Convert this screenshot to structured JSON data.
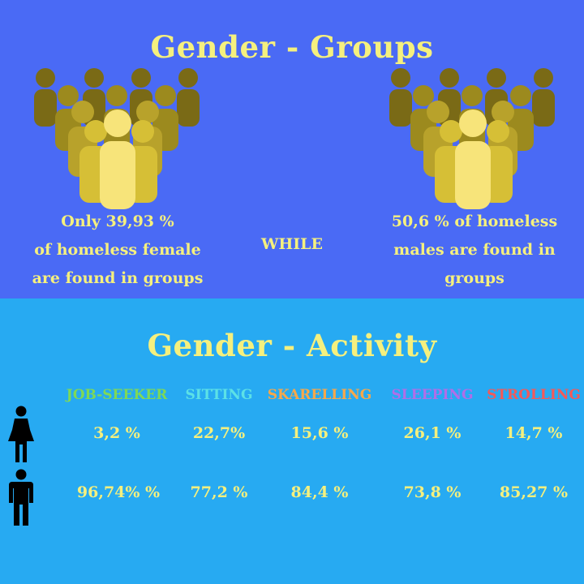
{
  "groups": {
    "title": "Gender - Groups",
    "female_text": [
      "Only 39,93 %",
      "of homeless female",
      "are found in groups"
    ],
    "connector": "WHILE",
    "male_text": [
      "50,6 % of homeless",
      "males are found in",
      "groups"
    ]
  },
  "activity": {
    "title": "Gender - Activity",
    "columns": [
      {
        "label": "JOB-SEEKER",
        "color": "#7ed957",
        "female": "3,2 %",
        "male": "96,74% %"
      },
      {
        "label": "SITTING",
        "color": "#5ce1e6",
        "female": "22,7%",
        "male": "77,2 %"
      },
      {
        "label": "SKARELLING",
        "color": "#f7a84a",
        "female": "15,6 %",
        "male": "84,4 %"
      },
      {
        "label": "SLEEPING",
        "color": "#b06ee8",
        "female": "26,1 %",
        "male": "73,8 %"
      },
      {
        "label": "STROLLING",
        "color": "#f25a5a",
        "female": "14,7 %",
        "male": "85,27 %"
      }
    ]
  },
  "icons": [
    "people-group-icon",
    "female-icon",
    "male-icon"
  ],
  "colors": {
    "top_bg": "#4a6af5",
    "bottom_bg": "#27aaf2",
    "text": "#f5f07e"
  }
}
